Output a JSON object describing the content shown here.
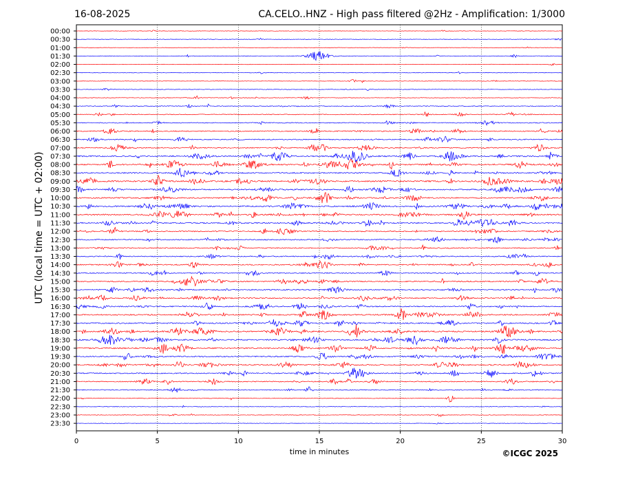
{
  "date": "16-08-2025",
  "title": "CA.CELO..HNZ - High pass filtered @2Hz - Amplification: 1/3000",
  "copyright": "©ICGC 2025",
  "chart_data": {
    "type": "line",
    "xlabel": "time in minutes",
    "ylabel": "UTC (local time = UTC + 02:00)",
    "xlim": [
      0,
      30
    ],
    "x_ticks": [
      "0",
      "5",
      "10",
      "15",
      "20",
      "25",
      "30"
    ],
    "x_tick_values": [
      0,
      5,
      10,
      15,
      20,
      25,
      30
    ],
    "grid": "vertical dotted lines every 5 minutes",
    "trace_colors": [
      "#ff0000",
      "#0000ff"
    ],
    "rows": [
      {
        "label": "00:00",
        "activity": 0.05
      },
      {
        "label": "00:30",
        "activity": 0.08
      },
      {
        "label": "01:00",
        "activity": 0.05
      },
      {
        "label": "01:30",
        "activity": 0.1
      },
      {
        "label": "02:00",
        "activity": 0.04
      },
      {
        "label": "02:30",
        "activity": 0.08
      },
      {
        "label": "03:00",
        "activity": 0.12
      },
      {
        "label": "03:30",
        "activity": 0.1
      },
      {
        "label": "04:00",
        "activity": 0.15
      },
      {
        "label": "04:30",
        "activity": 0.25
      },
      {
        "label": "05:00",
        "activity": 0.3
      },
      {
        "label": "05:30",
        "activity": 0.35
      },
      {
        "label": "06:00",
        "activity": 0.45
      },
      {
        "label": "06:30",
        "activity": 0.45
      },
      {
        "label": "07:00",
        "activity": 0.5
      },
      {
        "label": "07:30",
        "activity": 0.7
      },
      {
        "label": "08:00",
        "activity": 0.8
      },
      {
        "label": "08:30",
        "activity": 0.6
      },
      {
        "label": "09:00",
        "activity": 0.8
      },
      {
        "label": "09:30",
        "activity": 0.65
      },
      {
        "label": "10:00",
        "activity": 0.65
      },
      {
        "label": "10:30",
        "activity": 0.75
      },
      {
        "label": "11:00",
        "activity": 0.7
      },
      {
        "label": "11:30",
        "activity": 0.65
      },
      {
        "label": "12:00",
        "activity": 0.55
      },
      {
        "label": "12:30",
        "activity": 0.55
      },
      {
        "label": "13:00",
        "activity": 0.45
      },
      {
        "label": "13:30",
        "activity": 0.45
      },
      {
        "label": "14:00",
        "activity": 0.55
      },
      {
        "label": "14:30",
        "activity": 0.45
      },
      {
        "label": "15:00",
        "activity": 0.6
      },
      {
        "label": "15:30",
        "activity": 0.55
      },
      {
        "label": "16:00",
        "activity": 0.55
      },
      {
        "label": "16:30",
        "activity": 0.55
      },
      {
        "label": "17:00",
        "activity": 0.65
      },
      {
        "label": "17:30",
        "activity": 0.65
      },
      {
        "label": "18:00",
        "activity": 0.75
      },
      {
        "label": "18:30",
        "activity": 0.65
      },
      {
        "label": "19:00",
        "activity": 0.7
      },
      {
        "label": "19:30",
        "activity": 0.65
      },
      {
        "label": "20:00",
        "activity": 0.65
      },
      {
        "label": "20:30",
        "activity": 0.55
      },
      {
        "label": "21:00",
        "activity": 0.45
      },
      {
        "label": "21:30",
        "activity": 0.35
      },
      {
        "label": "22:00",
        "activity": 0.15
      },
      {
        "label": "22:30",
        "activity": 0.12
      },
      {
        "label": "23:00",
        "activity": 0.12
      },
      {
        "label": "23:30",
        "activity": 0.03
      }
    ]
  }
}
